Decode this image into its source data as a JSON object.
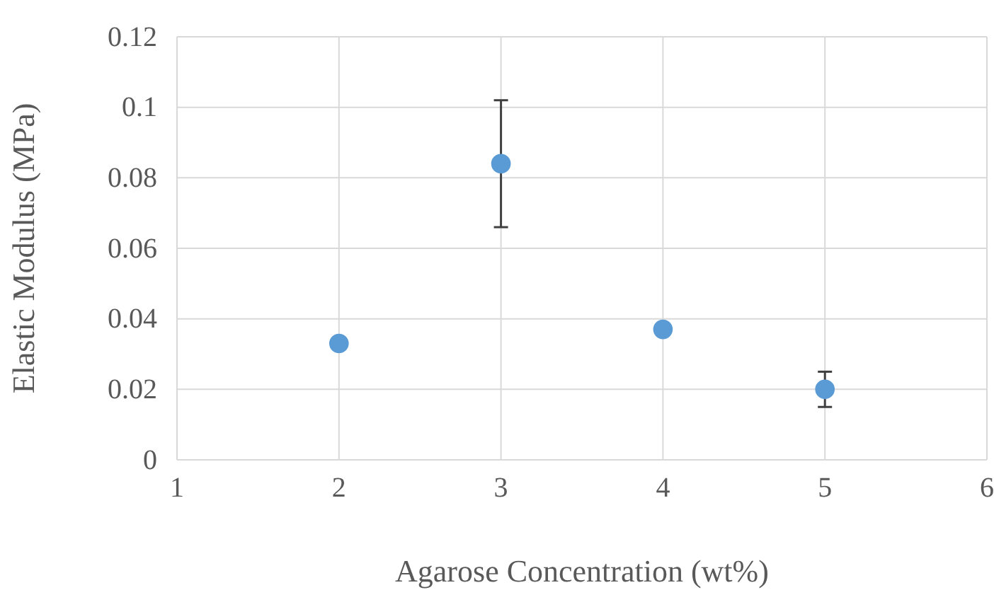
{
  "chart_data": {
    "type": "scatter",
    "xlabel": "Agarose Concentration (wt%)",
    "ylabel": "Elastic Modulus (MPa)",
    "x": [
      2,
      3,
      4,
      5
    ],
    "series": [
      {
        "color": "#5b9bd5",
        "values": [
          0.033,
          0.084,
          0.037,
          0.02
        ],
        "errors": [
          null,
          [
            0.066,
            0.102
          ],
          null,
          [
            0.015,
            0.025
          ]
        ]
      }
    ],
    "xlim": [
      1,
      6
    ],
    "xticks": [
      1,
      2,
      3,
      4,
      5,
      6
    ],
    "ylim": [
      0,
      0.12
    ],
    "yticks": [
      0,
      0.02,
      0.04,
      0.06,
      0.08,
      0.1,
      0.12
    ],
    "grid": true,
    "marker": "circle"
  }
}
